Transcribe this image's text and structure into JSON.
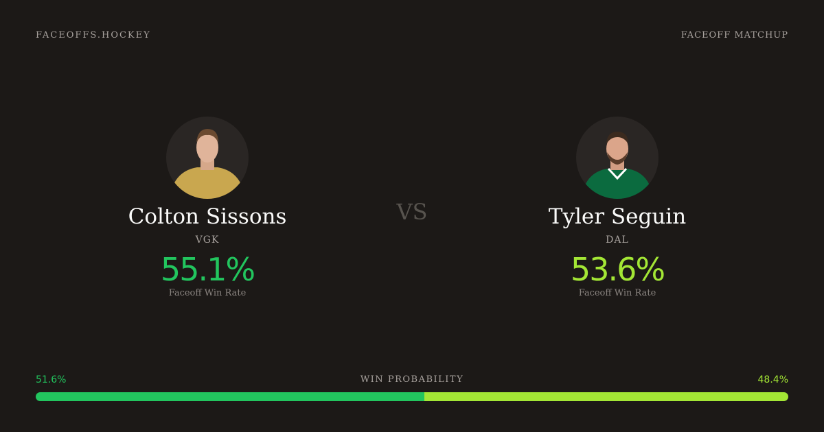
{
  "header": {
    "site": "FACEOFFS.HOCKEY",
    "label": "FACEOFF MATCHUP"
  },
  "players": [
    {
      "name": "Colton Sissons",
      "team": "VGK",
      "rate": "55.1%",
      "rate_label": "Faceoff Win Rate",
      "color": "#22c55e"
    },
    {
      "name": "Tyler Seguin",
      "team": "DAL",
      "rate": "53.6%",
      "rate_label": "Faceoff Win Rate",
      "color": "#a3e635"
    }
  ],
  "versus": "VS",
  "win_probability": {
    "label": "WIN PROBABILITY",
    "values": [
      51.6,
      48.4
    ],
    "value_labels": [
      "51.6%",
      "48.4%"
    ],
    "colors": [
      "#22c55e",
      "#a3e635"
    ]
  }
}
